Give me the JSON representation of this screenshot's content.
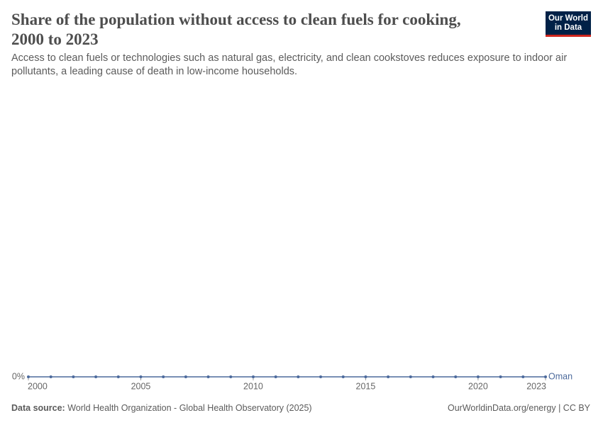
{
  "chart_data": {
    "type": "line",
    "title": "Share of the population without access to clean fuels for cooking, 2000 to 2023",
    "subtitle": "Access to clean fuels or technologies such as natural gas, electricity, and clean cookstoves reduces exposure to indoor air pollutants, a leading cause of death in low-income households.",
    "x": [
      2000,
      2001,
      2002,
      2003,
      2004,
      2005,
      2006,
      2007,
      2008,
      2009,
      2010,
      2011,
      2012,
      2013,
      2014,
      2015,
      2016,
      2017,
      2018,
      2019,
      2020,
      2021,
      2022,
      2023
    ],
    "series": [
      {
        "name": "Oman",
        "color": "#4c6a9c",
        "values": [
          0,
          0,
          0,
          0,
          0,
          0,
          0,
          0,
          0,
          0,
          0,
          0,
          0,
          0,
          0,
          0,
          0,
          0,
          0,
          0,
          0,
          0,
          0,
          0
        ]
      }
    ],
    "xlim": [
      2000,
      2023
    ],
    "xticks": [
      2000,
      2005,
      2010,
      2015,
      2020,
      2023
    ],
    "ylim": [
      0,
      1
    ],
    "yticks": [
      {
        "value": 0,
        "label": "0%"
      }
    ],
    "grid": true
  },
  "logo": [
    "Our World",
    "in Data"
  ],
  "source": {
    "label": "Data source:",
    "text": "World Health Organization - Global Health Observatory (2025)"
  },
  "footer_right": "OurWorldinData.org/energy | CC BY"
}
